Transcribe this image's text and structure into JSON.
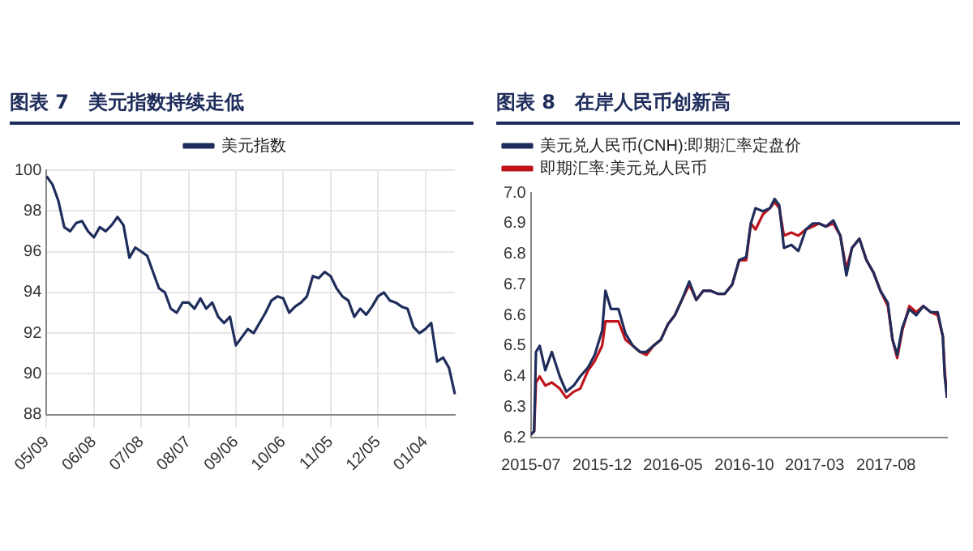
{
  "chart_data": [
    {
      "type": "line",
      "title": "图表 7　美元指数持续走低",
      "categories": [
        "05/09",
        null,
        null,
        null,
        null,
        null,
        null,
        null,
        "06/08",
        null,
        null,
        null,
        null,
        null,
        null,
        null,
        "07/08",
        null,
        null,
        null,
        null,
        null,
        null,
        null,
        "08/07",
        null,
        null,
        null,
        null,
        null,
        null,
        null,
        "09/06",
        null,
        null,
        null,
        null,
        null,
        null,
        null,
        "10/06",
        null,
        null,
        null,
        null,
        null,
        null,
        null,
        "11/05",
        null,
        null,
        null,
        null,
        null,
        null,
        null,
        "12/05",
        null,
        null,
        null,
        null,
        null,
        null,
        null,
        "01/04",
        null,
        null,
        null,
        null,
        null
      ],
      "series": [
        {
          "name": "美元指数",
          "color": "#1f2d5c",
          "values": [
            99.7,
            99.3,
            98.5,
            97.2,
            97.0,
            97.4,
            97.5,
            97.0,
            96.7,
            97.2,
            97.0,
            97.3,
            97.7,
            97.3,
            95.7,
            96.2,
            96.0,
            95.8,
            95.0,
            94.2,
            94.0,
            93.2,
            93.0,
            93.5,
            93.5,
            93.2,
            93.7,
            93.2,
            93.5,
            92.8,
            92.5,
            92.8,
            91.4,
            91.8,
            92.2,
            92.0,
            92.5,
            93.0,
            93.6,
            93.8,
            93.7,
            93.0,
            93.3,
            93.5,
            93.8,
            94.8,
            94.7,
            95.0,
            94.8,
            94.2,
            93.8,
            93.6,
            92.8,
            93.2,
            92.9,
            93.3,
            93.8,
            94.0,
            93.6,
            93.5,
            93.3,
            93.2,
            92.3,
            92.0,
            92.2,
            92.5,
            90.6,
            90.8,
            90.3,
            89.0
          ]
        }
      ],
      "ylim": [
        88,
        100
      ],
      "yticks": [
        88,
        90,
        92,
        94,
        96,
        98,
        100
      ],
      "grid": true,
      "legend": "top",
      "marker": "none",
      "line_style": "solid"
    },
    {
      "type": "line",
      "title": "图表 8　在岸人民币创新高",
      "x": [
        "2015-07-01",
        "2015-07-08",
        "2015-07-12",
        "2015-07-20",
        "2015-08-01",
        "2015-08-15",
        "2015-09-01",
        "2015-09-15",
        "2015-10-01",
        "2015-10-15",
        "2015-11-01",
        "2015-11-15",
        "2015-12-01",
        "2015-12-08",
        "2015-12-20",
        "2016-01-05",
        "2016-01-20",
        "2016-02-05",
        "2016-02-20",
        "2016-03-05",
        "2016-03-20",
        "2016-04-05",
        "2016-04-20",
        "2016-05-05",
        "2016-05-20",
        "2016-06-05",
        "2016-06-20",
        "2016-07-05",
        "2016-07-20",
        "2016-08-05",
        "2016-08-20",
        "2016-09-05",
        "2016-09-20",
        "2016-10-05",
        "2016-10-15",
        "2016-10-25",
        "2016-11-10",
        "2016-11-25",
        "2016-12-05",
        "2016-12-15",
        "2016-12-25",
        "2017-01-10",
        "2017-01-25",
        "2017-02-10",
        "2017-02-25",
        "2017-03-10",
        "2017-03-25",
        "2017-04-10",
        "2017-04-25",
        "2017-05-08",
        "2017-05-20",
        "2017-06-05",
        "2017-06-20",
        "2017-07-05",
        "2017-07-20",
        "2017-08-05",
        "2017-08-15",
        "2017-08-25",
        "2017-09-05",
        "2017-09-20",
        "2017-10-05",
        "2017-10-20",
        "2017-11-05",
        "2017-11-20",
        "2017-12-01",
        "2017-12-05",
        "2017-12-10"
      ],
      "series": [
        {
          "name": "美元兑人民币(CNH):即期汇率定盘价",
          "color": "#1f2d5c",
          "values": [
            6.21,
            6.22,
            6.48,
            6.5,
            6.42,
            6.48,
            6.4,
            6.35,
            6.37,
            6.4,
            6.43,
            6.47,
            6.55,
            6.68,
            6.62,
            6.62,
            6.54,
            6.5,
            6.48,
            6.48,
            6.5,
            6.52,
            6.57,
            6.6,
            6.65,
            6.71,
            6.65,
            6.68,
            6.68,
            6.67,
            6.67,
            6.7,
            6.78,
            6.79,
            6.9,
            6.95,
            6.94,
            6.95,
            6.98,
            6.96,
            6.82,
            6.83,
            6.81,
            6.88,
            6.9,
            6.9,
            6.89,
            6.91,
            6.86,
            6.73,
            6.82,
            6.85,
            6.78,
            6.74,
            6.68,
            6.64,
            6.52,
            6.47,
            6.56,
            6.62,
            6.6,
            6.63,
            6.61,
            6.61,
            6.53,
            6.4,
            6.33
          ]
        },
        {
          "name": "即期汇率:美元兑人民币",
          "color": "#c0141c",
          "values": [
            6.21,
            6.22,
            6.38,
            6.4,
            6.37,
            6.38,
            6.36,
            6.33,
            6.35,
            6.36,
            6.42,
            6.45,
            6.5,
            6.58,
            6.58,
            6.58,
            6.52,
            6.5,
            6.48,
            6.47,
            6.5,
            6.52,
            6.57,
            6.6,
            6.65,
            6.7,
            6.65,
            6.68,
            6.68,
            6.67,
            6.67,
            6.7,
            6.78,
            6.78,
            6.9,
            6.88,
            6.93,
            6.95,
            6.97,
            6.95,
            6.86,
            6.87,
            6.86,
            6.88,
            6.89,
            6.9,
            6.89,
            6.9,
            6.86,
            6.75,
            6.82,
            6.85,
            6.78,
            6.74,
            6.68,
            6.63,
            6.52,
            6.46,
            6.55,
            6.63,
            6.61,
            6.63,
            6.61,
            6.6,
            6.53,
            6.42,
            6.33
          ]
        }
      ],
      "xlim": [
        "2015-07-01",
        "2017-12-10"
      ],
      "xticks": [
        "2015-07",
        "2015-12",
        "2016-05",
        "2016-10",
        "2017-03",
        "2017-08"
      ],
      "ylim": [
        6.2,
        7.0
      ],
      "yticks": [
        {
          "value": 6.2,
          "label": "6.2"
        },
        {
          "value": 6.3,
          "label": "6.3"
        },
        {
          "value": 6.4,
          "label": "6.4"
        },
        {
          "value": 6.5,
          "label": "6.5"
        },
        {
          "value": 6.6,
          "label": "6.6"
        },
        {
          "value": 6.7,
          "label": "6.7"
        },
        {
          "value": 6.8,
          "label": "6.8"
        },
        {
          "value": 6.9,
          "label": "6.9"
        },
        {
          "value": 7.0,
          "label": "7.0"
        }
      ],
      "grid": false,
      "legend": "top left",
      "marker": "none",
      "line_style": "solid"
    }
  ]
}
